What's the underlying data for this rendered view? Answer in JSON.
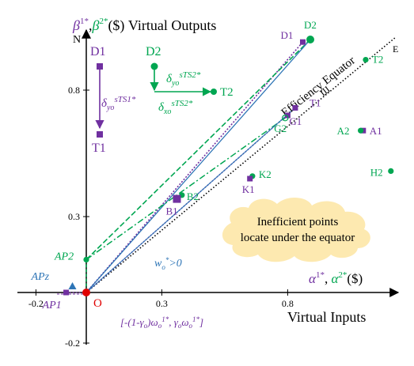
{
  "colors": {
    "purple": "#7030a0",
    "green": "#00a651",
    "blue": "#2e75b6",
    "red": "#e00000",
    "cloud": "#fde9b0",
    "black": "#000000"
  },
  "axes": {
    "y_title_prefix": "β",
    "y_title_full": "β¹*, β²*($) Virtual Outputs",
    "x_title": "Virtual Inputs",
    "x_alpha_label": "α¹*, α²*($)",
    "y_end_label": "N",
    "x_end_label": "E",
    "origin_label": "O",
    "x_ticks": [
      {
        "value": -0.2,
        "label": "-0.2"
      },
      {
        "value": 0.3,
        "label": "0.3"
      },
      {
        "value": 0.8,
        "label": "0.8"
      }
    ],
    "y_ticks": [
      {
        "value": 0.8,
        "label": "0.8"
      },
      {
        "value": 0.3,
        "label": "0.3"
      },
      {
        "value": -0.2,
        "label": "-0.2"
      }
    ]
  },
  "equator": {
    "label": "Efficiency Equator",
    "from": [
      0,
      0
    ],
    "to": [
      1.2,
      1.0
    ]
  },
  "points": [
    {
      "id": "D1-top",
      "label": "D1",
      "x": 0.86,
      "y": 0.99,
      "shape": "square",
      "color": "purple"
    },
    {
      "id": "D2-top",
      "label": "D2",
      "x": 0.89,
      "y": 1.0,
      "shape": "circle",
      "color": "green"
    },
    {
      "id": "T1",
      "label": "T1",
      "x": 0.83,
      "y": 0.73,
      "shape": "square",
      "color": "purple"
    },
    {
      "id": "G1",
      "label": "G1",
      "x": 0.8,
      "y": 0.7,
      "shape": "square",
      "color": "purple"
    },
    {
      "id": "G2",
      "label": "G2",
      "x": 0.79,
      "y": 0.69,
      "shape": "circle",
      "color": "green"
    },
    {
      "id": "T2",
      "label": "T2",
      "x": 1.11,
      "y": 0.92,
      "shape": "circle",
      "color": "green"
    },
    {
      "id": "A1",
      "label": "A1",
      "x": 1.1,
      "y": 0.64,
      "shape": "square",
      "color": "purple"
    },
    {
      "id": "A2",
      "label": "A2",
      "x": 1.09,
      "y": 0.64,
      "shape": "circle",
      "color": "green"
    },
    {
      "id": "H2",
      "label": "H2",
      "x": 1.21,
      "y": 0.48,
      "shape": "circle",
      "color": "green"
    },
    {
      "id": "K2",
      "label": "K2",
      "x": 0.66,
      "y": 0.46,
      "shape": "circle",
      "color": "green"
    },
    {
      "id": "K1",
      "label": "K1",
      "x": 0.65,
      "y": 0.45,
      "shape": "square",
      "color": "purple"
    },
    {
      "id": "B2",
      "label": "B2",
      "x": 0.38,
      "y": 0.385,
      "shape": "circle",
      "color": "green"
    },
    {
      "id": "B1",
      "label": "B1",
      "x": 0.36,
      "y": 0.37,
      "shape": "square",
      "color": "purple"
    },
    {
      "id": "AP2",
      "label": "AP2",
      "x": 0.0,
      "y": 0.13,
      "shape": "circle",
      "color": "green"
    },
    {
      "id": "AP1",
      "label": "AP1",
      "x": -0.08,
      "y": 0.0,
      "shape": "square",
      "color": "purple"
    },
    {
      "id": "APz",
      "label": "APz",
      "x": -0.055,
      "y": 0.025,
      "shape": "triangle",
      "color": "blue"
    },
    {
      "id": "O",
      "label": "O",
      "x": 0.0,
      "y": 0.0,
      "shape": "circle",
      "color": "red"
    }
  ],
  "translation_demo": {
    "D1_label": "D1",
    "T1_label": "T1",
    "D2_label": "D2",
    "T2_label": "T2",
    "purple_arrow_text": "δyo sTS1*",
    "green_arrow_text_top": "δyo sTS2*",
    "green_arrow_text_bottom": "δxo sTS2*"
  },
  "annotations": {
    "w_text": "wo*>0",
    "interval_text": "[-(1-γo)ωo1*, γoωo1*]",
    "cloud_line1": "Inefficient points",
    "cloud_line2": "locate under the equator"
  }
}
